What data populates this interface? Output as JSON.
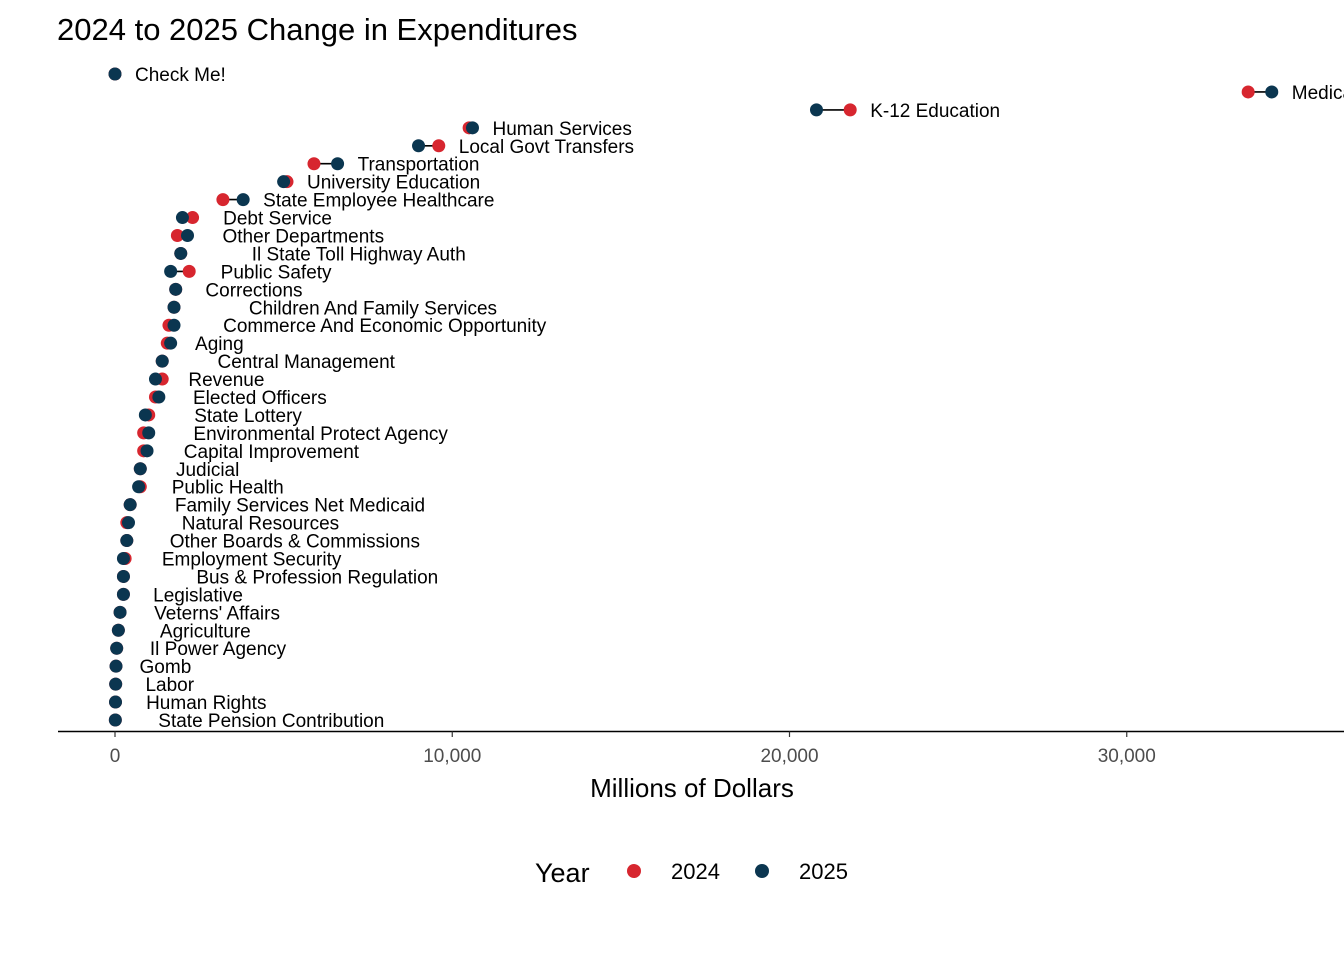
{
  "chart_data": {
    "type": "scatter",
    "subtype": "dumbbell",
    "title": "2024 to 2025 Change in Expenditures",
    "xlabel": "Millions of Dollars",
    "ylabel": "",
    "xlim": [
      -1700,
      36300
    ],
    "x_ticks": [
      0,
      10000,
      20000,
      30000
    ],
    "x_tick_labels": [
      "0",
      "10,000",
      "20,000",
      "30,000"
    ],
    "grid": false,
    "legend": {
      "title": "Year",
      "position": "bottom",
      "entries": [
        {
          "name": "2024",
          "color": "#d7262f"
        },
        {
          "name": "2025",
          "color": "#0b3650"
        }
      ]
    },
    "colors": {
      "y2024": "#d7262f",
      "y2025": "#0b3650",
      "axis": "#000000",
      "tick_text": "#4d4d4d"
    },
    "categories": [
      {
        "label": "Check Me!",
        "v2024": 0,
        "v2025": 0
      },
      {
        "label": "Medicaid",
        "v2024": 33600,
        "v2025": 34300
      },
      {
        "label": "K-12 Education",
        "v2024": 21800,
        "v2025": 20800
      },
      {
        "label": "Human Services",
        "v2024": 10500,
        "v2025": 10600
      },
      {
        "label": "Local Govt Transfers",
        "v2024": 9600,
        "v2025": 9000
      },
      {
        "label": "Transportation",
        "v2024": 5900,
        "v2025": 6600
      },
      {
        "label": "University Education",
        "v2024": 5100,
        "v2025": 5000
      },
      {
        "label": "State Employee Healthcare",
        "v2024": 3200,
        "v2025": 3800
      },
      {
        "label": "Debt Service",
        "v2024": 2300,
        "v2025": 2000
      },
      {
        "label": "Other Departments",
        "v2024": 1850,
        "v2025": 2150
      },
      {
        "label": "Il State Toll Highway Auth",
        "v2024": 1950,
        "v2025": 1950
      },
      {
        "label": "Public Safety",
        "v2024": 2200,
        "v2025": 1650
      },
      {
        "label": "Corrections",
        "v2024": 1800,
        "v2025": 1800
      },
      {
        "label": "Children And Family Services",
        "v2024": 1750,
        "v2025": 1750
      },
      {
        "label": "Commerce And Economic Opportunity",
        "v2024": 1600,
        "v2025": 1750
      },
      {
        "label": "Aging",
        "v2024": 1550,
        "v2025": 1650
      },
      {
        "label": "Central Management",
        "v2024": 1400,
        "v2025": 1400
      },
      {
        "label": "Revenue",
        "v2024": 1400,
        "v2025": 1200
      },
      {
        "label": "Elected Officers",
        "v2024": 1200,
        "v2025": 1300
      },
      {
        "label": "State Lottery",
        "v2024": 1000,
        "v2025": 900
      },
      {
        "label": "Environmental Protect Agency",
        "v2024": 850,
        "v2025": 1000
      },
      {
        "label": "Capital Improvement",
        "v2024": 850,
        "v2025": 950
      },
      {
        "label": "Judicial",
        "v2024": 750,
        "v2025": 750
      },
      {
        "label": "Public Health",
        "v2024": 750,
        "v2025": 700
      },
      {
        "label": "Family Services Net Medicaid",
        "v2024": 450,
        "v2025": 450
      },
      {
        "label": "Natural Resources",
        "v2024": 350,
        "v2025": 400
      },
      {
        "label": "Other Boards & Commissions",
        "v2024": 350,
        "v2025": 350
      },
      {
        "label": "Employment Security",
        "v2024": 300,
        "v2025": 250
      },
      {
        "label": "Bus & Profession Regulation",
        "v2024": 250,
        "v2025": 250
      },
      {
        "label": "Legislative",
        "v2024": 250,
        "v2025": 250
      },
      {
        "label": "Veterns' Affairs",
        "v2024": 150,
        "v2025": 150
      },
      {
        "label": "Agriculture",
        "v2024": 100,
        "v2025": 100
      },
      {
        "label": "Il Power Agency",
        "v2024": 50,
        "v2025": 50
      },
      {
        "label": "Gomb",
        "v2024": 30,
        "v2025": 30
      },
      {
        "label": "Labor",
        "v2024": 20,
        "v2025": 20
      },
      {
        "label": "Human Rights",
        "v2024": 15,
        "v2025": 15
      },
      {
        "label": "State Pension Contribution",
        "v2024": 10,
        "v2025": 10
      }
    ]
  }
}
